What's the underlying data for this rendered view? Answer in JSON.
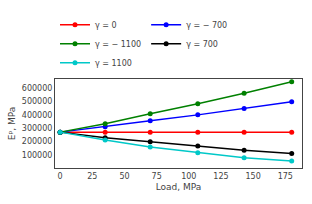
{
  "chart_data": {
    "type": "line",
    "xlabel": "Load, MPa",
    "ylabel": "Eᵖ, MPa",
    "x": [
      0,
      35,
      70,
      107,
      143,
      180
    ],
    "series": [
      {
        "name": "γ = 0",
        "color": "red",
        "values": [
          270000,
          270000,
          270000,
          270000,
          270000,
          270000
        ]
      },
      {
        "name": "γ = − 700",
        "color": "blue",
        "values": [
          270000,
          310000,
          355000,
          400000,
          447000,
          498000
        ]
      },
      {
        "name": "γ = − 1100",
        "color": "green",
        "values": [
          270000,
          333000,
          408000,
          483000,
          562000,
          650000
        ]
      },
      {
        "name": "γ = 700",
        "color": "black",
        "values": [
          270000,
          228000,
          197000,
          165000,
          133000,
          110000
        ]
      },
      {
        "name": "γ = 1100",
        "color": "#00c8c8",
        "values": [
          270000,
          210000,
          158000,
          115000,
          78000,
          52000
        ]
      }
    ],
    "xlim": [
      -4,
      188
    ],
    "xticks": [
      0,
      25,
      50,
      75,
      100,
      125,
      150,
      175
    ],
    "ylim": [
      0,
      670000
    ],
    "yticks": [
      100000,
      200000,
      300000,
      400000,
      500000,
      600000
    ],
    "marker": "circle",
    "line_style": "solid",
    "grid": false,
    "legend": "upper left"
  }
}
